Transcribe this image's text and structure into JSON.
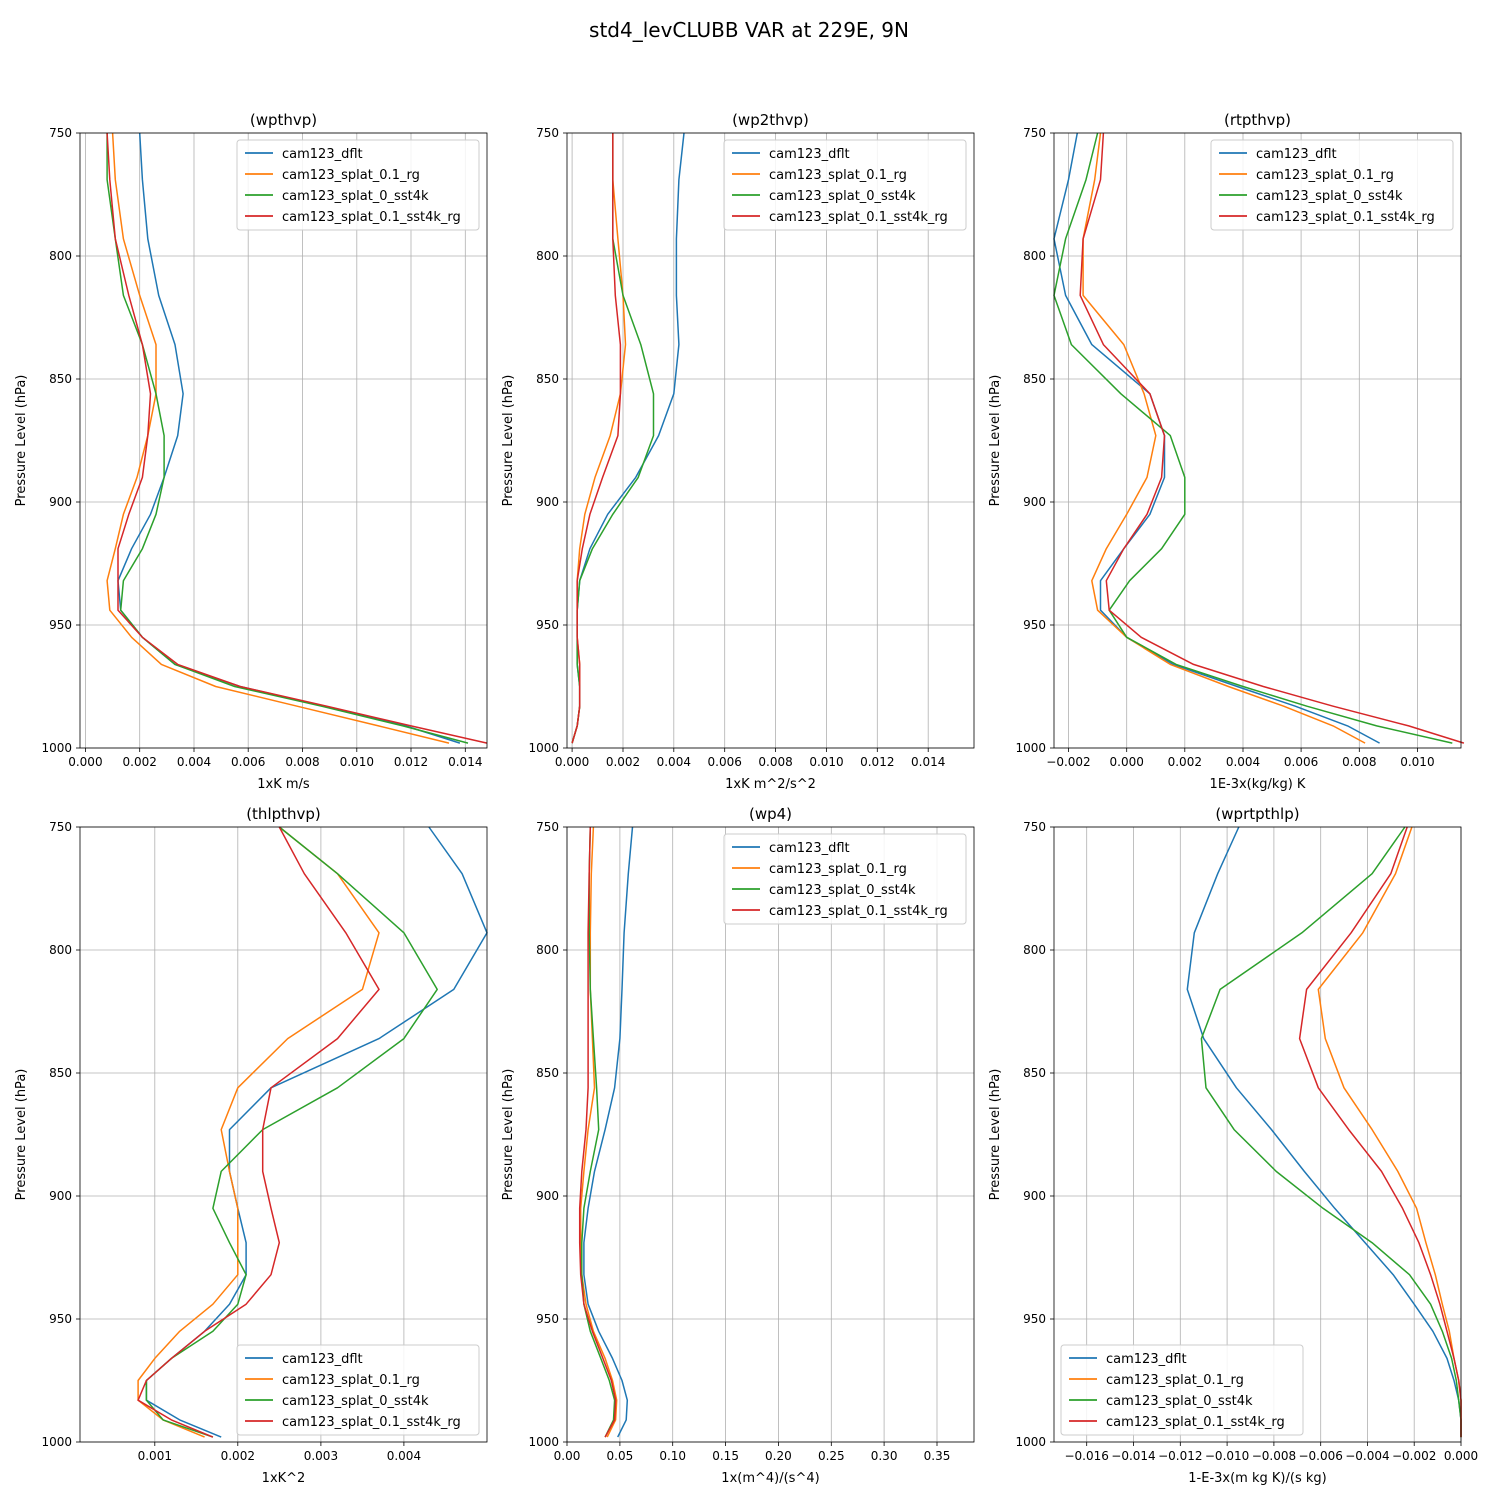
{
  "figure_title": "std4_levCLUBB VAR at 229E, 9N",
  "colors": {
    "cam123_dflt": "#1f77b4",
    "cam123_splat_0.1_rg": "#ff7f0e",
    "cam123_splat_0_sst4k": "#2ca02c",
    "cam123_splat_0.1_sst4k_rg": "#d62728",
    "grid": "#b0b0b0"
  },
  "chart_data": [
    {
      "type": "line",
      "title": "(wpthvp)",
      "xlabel": "1xK m/s",
      "ylabel": "Pressure Level (hPa)",
      "xlim": [
        -0.0002,
        0.0148
      ],
      "ylim": [
        1000,
        750
      ],
      "xticks": [
        0.0,
        0.002,
        0.004,
        0.006,
        0.008,
        0.01,
        0.012,
        0.014
      ],
      "xticklabels": [
        "0.000",
        "0.002",
        "0.004",
        "0.006",
        "0.008",
        "0.010",
        "0.012",
        "0.014"
      ],
      "yticks": [
        750,
        800,
        850,
        900,
        950,
        1000
      ],
      "yticklabels": [
        "750",
        "800",
        "850",
        "900",
        "950",
        "1000"
      ],
      "grid": true,
      "legend_loc": "upper-right",
      "levels": [
        750,
        769,
        793,
        816,
        836,
        856,
        873,
        890,
        905,
        919,
        932,
        944,
        955,
        966,
        975,
        983,
        991,
        998
      ],
      "series": [
        {
          "name": "cam123_dflt",
          "values": [
            0.002,
            0.0021,
            0.0023,
            0.0027,
            0.0033,
            0.0036,
            0.0034,
            0.0029,
            0.0024,
            0.0017,
            0.0012,
            0.0013,
            0.0021,
            0.0033,
            0.0057,
            0.0088,
            0.0118,
            0.0138
          ]
        },
        {
          "name": "cam123_splat_0.1_rg",
          "values": [
            0.001,
            0.0011,
            0.0014,
            0.002,
            0.0026,
            0.0026,
            0.0023,
            0.0019,
            0.0014,
            0.0011,
            0.0008,
            0.0009,
            0.0017,
            0.0028,
            0.0048,
            0.0078,
            0.0108,
            0.0134
          ]
        },
        {
          "name": "cam123_splat_0_sst4k",
          "values": [
            0.0008,
            0.0008,
            0.0011,
            0.0014,
            0.0021,
            0.0026,
            0.0029,
            0.0029,
            0.0026,
            0.0021,
            0.0014,
            0.0013,
            0.0021,
            0.0033,
            0.0055,
            0.0087,
            0.0117,
            0.0141
          ]
        },
        {
          "name": "cam123_splat_0.1_sst4k_rg",
          "values": [
            0.0008,
            0.0009,
            0.0011,
            0.0016,
            0.0021,
            0.0024,
            0.0023,
            0.0021,
            0.0016,
            0.0012,
            0.0012,
            0.0012,
            0.0021,
            0.0034,
            0.0057,
            0.0089,
            0.012,
            0.0148
          ]
        }
      ]
    },
    {
      "type": "line",
      "title": "(wp2thvp)",
      "xlabel": "1xK m^2/s^2",
      "ylabel": "Pressure Level (hPa)",
      "xlim": [
        -0.0002,
        0.0158
      ],
      "ylim": [
        1000,
        750
      ],
      "xticks": [
        0.0,
        0.002,
        0.004,
        0.006,
        0.008,
        0.01,
        0.012,
        0.014
      ],
      "xticklabels": [
        "0.000",
        "0.002",
        "0.004",
        "0.006",
        "0.008",
        "0.010",
        "0.012",
        "0.014"
      ],
      "yticks": [
        750,
        800,
        850,
        900,
        950,
        1000
      ],
      "yticklabels": [
        "750",
        "800",
        "850",
        "900",
        "950",
        "1000"
      ],
      "grid": true,
      "legend_loc": "upper-right",
      "levels": [
        750,
        769,
        793,
        816,
        836,
        856,
        873,
        890,
        905,
        919,
        932,
        944,
        955,
        966,
        975,
        983,
        991,
        998
      ],
      "series": [
        {
          "name": "cam123_dflt",
          "values": [
            0.0044,
            0.0042,
            0.0041,
            0.0041,
            0.0042,
            0.004,
            0.0034,
            0.0025,
            0.0014,
            0.0007,
            0.0003,
            0.0002,
            0.0002,
            0.0002,
            0.0003,
            0.0003,
            0.0002,
            0.0
          ]
        },
        {
          "name": "cam123_splat_0.1_rg",
          "values": [
            0.0016,
            0.0016,
            0.0018,
            0.002,
            0.0021,
            0.0019,
            0.0015,
            0.0009,
            0.0005,
            0.0003,
            0.0002,
            0.0002,
            0.0002,
            0.0003,
            0.0003,
            0.0003,
            0.0002,
            0.0
          ]
        },
        {
          "name": "cam123_splat_0_sst4k",
          "values": [
            0.0016,
            0.0016,
            0.0016,
            0.002,
            0.0027,
            0.0032,
            0.0032,
            0.0026,
            0.0016,
            0.0008,
            0.0003,
            0.0002,
            0.0002,
            0.0002,
            0.0003,
            0.0003,
            0.0002,
            0.0
          ]
        },
        {
          "name": "cam123_splat_0.1_sst4k_rg",
          "values": [
            0.0016,
            0.0016,
            0.0016,
            0.0017,
            0.0019,
            0.0019,
            0.0018,
            0.0012,
            0.0007,
            0.0004,
            0.0002,
            0.0002,
            0.0002,
            0.0003,
            0.0003,
            0.0003,
            0.0002,
            0.0
          ]
        }
      ]
    },
    {
      "type": "line",
      "title": "(rtpthvp)",
      "xlabel": "1E-3x(kg/kg) K",
      "ylabel": "Pressure Level (hPa)",
      "xlim": [
        -0.0025,
        0.0115
      ],
      "ylim": [
        1000,
        750
      ],
      "xticks": [
        -0.002,
        0.0,
        0.002,
        0.004,
        0.006,
        0.008,
        0.01
      ],
      "xticklabels": [
        "−0.002",
        "0.000",
        "0.002",
        "0.004",
        "0.006",
        "0.008",
        "0.010"
      ],
      "yticks": [
        750,
        800,
        850,
        900,
        950,
        1000
      ],
      "yticklabels": [
        "750",
        "800",
        "850",
        "900",
        "950",
        "1000"
      ],
      "grid": true,
      "legend_loc": "upper-right",
      "levels": [
        750,
        769,
        793,
        816,
        836,
        856,
        873,
        890,
        905,
        919,
        932,
        944,
        955,
        966,
        975,
        983,
        991,
        998
      ],
      "series": [
        {
          "name": "cam123_dflt",
          "values": [
            -0.0017,
            -0.002,
            -0.0025,
            -0.0021,
            -0.0012,
            0.0008,
            0.0013,
            0.0013,
            0.0008,
            -0.0001,
            -0.0009,
            -0.0009,
            0.0,
            0.0016,
            0.0038,
            0.0058,
            0.0076,
            0.0087
          ]
        },
        {
          "name": "cam123_splat_0.1_rg",
          "values": [
            -0.0009,
            -0.0011,
            -0.0015,
            -0.0015,
            -0.0001,
            0.0006,
            0.001,
            0.0007,
            0.0,
            -0.0007,
            -0.0012,
            -0.001,
            0.0,
            0.0015,
            0.0035,
            0.0054,
            0.0071,
            0.0082
          ]
        },
        {
          "name": "cam123_splat_0_sst4k",
          "values": [
            -0.001,
            -0.0014,
            -0.0021,
            -0.0025,
            -0.0019,
            -0.0002,
            0.0015,
            0.002,
            0.002,
            0.0012,
            0.0001,
            -0.0006,
            0.0,
            0.0017,
            0.004,
            0.0062,
            0.0086,
            0.0112
          ]
        },
        {
          "name": "cam123_splat_0.1_sst4k_rg",
          "values": [
            -0.0008,
            -0.0009,
            -0.0015,
            -0.0016,
            -0.0008,
            0.0008,
            0.0013,
            0.0012,
            0.0007,
            -0.0001,
            -0.0007,
            -0.0006,
            0.0005,
            0.0023,
            0.0047,
            0.0071,
            0.0097,
            0.0116
          ]
        }
      ]
    },
    {
      "type": "line",
      "title": "(thlpthvp)",
      "xlabel": "1xK^2",
      "ylabel": "Pressure Level (hPa)",
      "xlim": [
        0.0001,
        0.005
      ],
      "ylim": [
        1000,
        750
      ],
      "xticks": [
        0.001,
        0.002,
        0.003,
        0.004
      ],
      "xticklabels": [
        "0.001",
        "0.002",
        "0.003",
        "0.004"
      ],
      "yticks": [
        750,
        800,
        850,
        900,
        950,
        1000
      ],
      "yticklabels": [
        "750",
        "800",
        "850",
        "900",
        "950",
        "1000"
      ],
      "grid": true,
      "legend_loc": "lower-right",
      "levels": [
        750,
        769,
        793,
        816,
        836,
        856,
        873,
        890,
        905,
        919,
        932,
        944,
        955,
        966,
        975,
        983,
        991,
        998
      ],
      "series": [
        {
          "name": "cam123_dflt",
          "values": [
            0.0043,
            0.0047,
            0.005,
            0.0046,
            0.0037,
            0.0024,
            0.0019,
            0.0019,
            0.002,
            0.0021,
            0.0021,
            0.0019,
            0.0016,
            0.0012,
            0.0009,
            0.0009,
            0.0013,
            0.0018
          ]
        },
        {
          "name": "cam123_splat_0.1_rg",
          "values": [
            0.0025,
            0.0032,
            0.0037,
            0.0035,
            0.0026,
            0.002,
            0.0018,
            0.0019,
            0.002,
            0.002,
            0.002,
            0.0017,
            0.0013,
            0.001,
            0.0008,
            0.0008,
            0.0011,
            0.0016
          ]
        },
        {
          "name": "cam123_splat_0_sst4k",
          "values": [
            0.0025,
            0.0032,
            0.004,
            0.0044,
            0.004,
            0.0032,
            0.0023,
            0.0018,
            0.0017,
            0.0019,
            0.0021,
            0.002,
            0.0017,
            0.0012,
            0.0009,
            0.0009,
            0.0011,
            0.0017
          ]
        },
        {
          "name": "cam123_splat_0.1_sst4k_rg",
          "values": [
            0.0025,
            0.0028,
            0.0033,
            0.0037,
            0.0032,
            0.0024,
            0.0023,
            0.0023,
            0.0024,
            0.0025,
            0.0024,
            0.0021,
            0.0016,
            0.0012,
            0.0009,
            0.0008,
            0.0012,
            0.0017
          ]
        }
      ]
    },
    {
      "type": "line",
      "title": "(wp4)",
      "xlabel": "1x(m^4)/(s^4)",
      "ylabel": "Pressure Level (hPa)",
      "xlim": [
        -0.0,
        0.385
      ],
      "ylim": [
        1000,
        750
      ],
      "xticks": [
        0.0,
        0.05,
        0.1,
        0.15,
        0.2,
        0.25,
        0.3,
        0.35
      ],
      "xticklabels": [
        "0.00",
        "0.05",
        "0.10",
        "0.15",
        "0.20",
        "0.25",
        "0.30",
        "0.35"
      ],
      "yticks": [
        750,
        800,
        850,
        900,
        950,
        1000
      ],
      "yticklabels": [
        "750",
        "800",
        "850",
        "900",
        "950",
        "1000"
      ],
      "grid": true,
      "legend_loc": "upper-right",
      "levels": [
        750,
        769,
        793,
        816,
        836,
        856,
        873,
        890,
        905,
        919,
        932,
        944,
        955,
        966,
        975,
        983,
        991,
        998
      ],
      "series": [
        {
          "name": "cam123_dflt",
          "values": [
            0.062,
            0.058,
            0.054,
            0.052,
            0.05,
            0.045,
            0.036,
            0.026,
            0.02,
            0.016,
            0.016,
            0.02,
            0.03,
            0.043,
            0.052,
            0.057,
            0.056,
            0.048
          ]
        },
        {
          "name": "cam123_splat_0.1_rg",
          "values": [
            0.025,
            0.023,
            0.022,
            0.022,
            0.024,
            0.026,
            0.02,
            0.016,
            0.013,
            0.013,
            0.014,
            0.018,
            0.025,
            0.036,
            0.043,
            0.047,
            0.046,
            0.038
          ]
        },
        {
          "name": "cam123_splat_0_sst4k",
          "values": [
            0.022,
            0.021,
            0.021,
            0.022,
            0.025,
            0.028,
            0.03,
            0.022,
            0.016,
            0.014,
            0.014,
            0.016,
            0.022,
            0.032,
            0.04,
            0.045,
            0.044,
            0.036
          ]
        },
        {
          "name": "cam123_splat_0.1_sst4k_rg",
          "values": [
            0.022,
            0.021,
            0.02,
            0.02,
            0.02,
            0.02,
            0.018,
            0.014,
            0.012,
            0.012,
            0.013,
            0.016,
            0.024,
            0.034,
            0.042,
            0.046,
            0.045,
            0.036
          ]
        }
      ]
    },
    {
      "type": "line",
      "title": "(wprtpthlp)",
      "xlabel": "1-E-3x(m kg K)/(s kg)",
      "ylabel": "Pressure Level (hPa)",
      "xlim": [
        -0.0174,
        0.0
      ],
      "ylim": [
        1000,
        750
      ],
      "xticks": [
        -0.016,
        -0.014,
        -0.012,
        -0.01,
        -0.008,
        -0.006,
        -0.004,
        -0.002,
        0.0
      ],
      "xticklabels": [
        "−0.016",
        "−0.014",
        "−0.012",
        "−0.010",
        "−0.008",
        "−0.006",
        "−0.004",
        "−0.002",
        "0.000"
      ],
      "yticks": [
        750,
        800,
        850,
        900,
        950,
        1000
      ],
      "yticklabels": [
        "750",
        "800",
        "850",
        "900",
        "950",
        "1000"
      ],
      "grid": true,
      "legend_loc": "lower-left",
      "levels": [
        750,
        769,
        793,
        816,
        836,
        856,
        873,
        890,
        905,
        919,
        932,
        944,
        955,
        966,
        975,
        983,
        991,
        998
      ],
      "series": [
        {
          "name": "cam123_dflt",
          "values": [
            -0.0095,
            -0.0104,
            -0.0114,
            -0.0117,
            -0.011,
            -0.0096,
            -0.0081,
            -0.0067,
            -0.0054,
            -0.0041,
            -0.0029,
            -0.002,
            -0.0012,
            -0.0006,
            -0.0003,
            -0.0001,
            0.0,
            0.0
          ]
        },
        {
          "name": "cam123_splat_0.1_rg",
          "values": [
            -0.0021,
            -0.0028,
            -0.0042,
            -0.0061,
            -0.0058,
            -0.005,
            -0.0038,
            -0.0027,
            -0.0019,
            -0.0015,
            -0.0011,
            -0.0008,
            -0.0005,
            -0.0003,
            -0.0001,
            0.0,
            0.0,
            0.0
          ]
        },
        {
          "name": "cam123_splat_0_sst4k",
          "values": [
            -0.0024,
            -0.0038,
            -0.0068,
            -0.0103,
            -0.0111,
            -0.0109,
            -0.0097,
            -0.0079,
            -0.0059,
            -0.0038,
            -0.0022,
            -0.0013,
            -0.0008,
            -0.0004,
            -0.0002,
            -0.0001,
            0.0,
            0.0
          ]
        },
        {
          "name": "cam123_splat_0.1_sst4k_rg",
          "values": [
            -0.0023,
            -0.003,
            -0.0047,
            -0.0066,
            -0.0069,
            -0.0061,
            -0.0048,
            -0.0034,
            -0.0025,
            -0.0018,
            -0.0013,
            -0.0009,
            -0.0006,
            -0.0003,
            -0.0001,
            0.0,
            0.0,
            0.0
          ]
        }
      ]
    }
  ]
}
